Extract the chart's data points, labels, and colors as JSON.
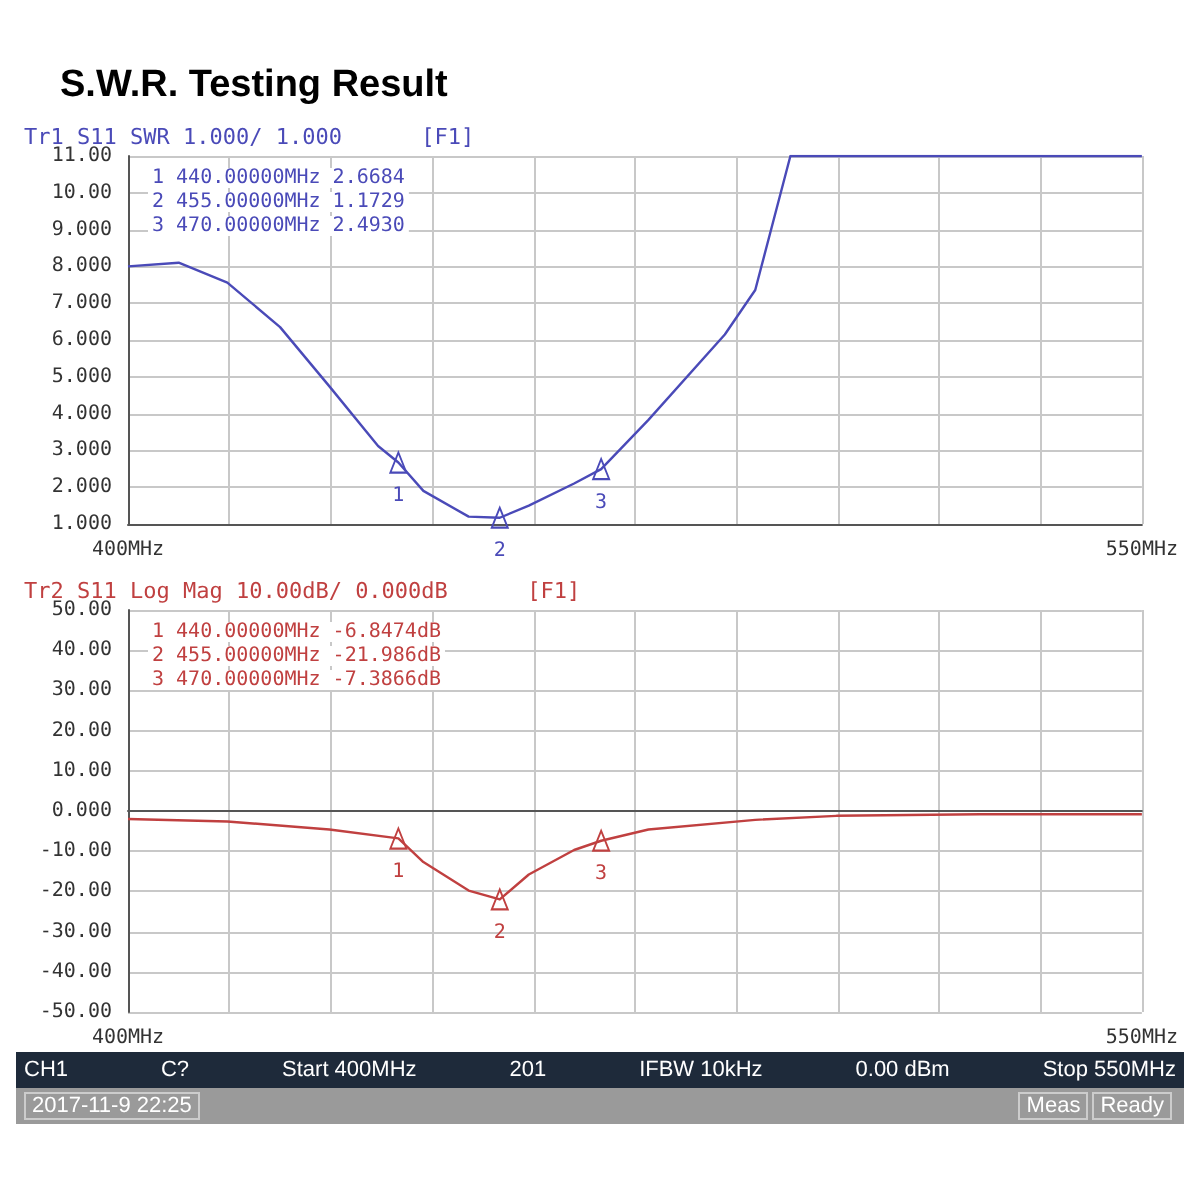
{
  "chart_data": [
    {
      "type": "line",
      "title": "S.W.R. Testing Result",
      "xlim": [
        400,
        550
      ],
      "xticks": [
        {
          "value": 400,
          "label": "400MHz"
        },
        {
          "value": 415,
          "label": null
        },
        {
          "value": 430,
          "label": null
        },
        {
          "value": 445,
          "label": null
        },
        {
          "value": 460,
          "label": null
        },
        {
          "value": 475,
          "label": null
        },
        {
          "value": 490,
          "label": null
        },
        {
          "value": 505,
          "label": null
        },
        {
          "value": 520,
          "label": null
        },
        {
          "value": 535,
          "label": null
        },
        {
          "value": 550,
          "label": "550MHz"
        }
      ],
      "ylim": [
        1,
        11
      ],
      "yticks": [
        {
          "value": 1,
          "label": "1.000"
        },
        {
          "value": 2,
          "label": "2.000"
        },
        {
          "value": 3,
          "label": "3.000"
        },
        {
          "value": 4,
          "label": "4.000"
        },
        {
          "value": 5,
          "label": "5.000"
        },
        {
          "value": 6,
          "label": "6.000"
        },
        {
          "value": 7,
          "label": "7.000"
        },
        {
          "value": 8,
          "label": "8.000"
        },
        {
          "value": 9,
          "label": "9.000"
        },
        {
          "value": 10,
          "label": "10.00"
        },
        {
          "value": 11,
          "label": "11.00"
        }
      ],
      "grid": true,
      "marker": "none",
      "series": [
        {
          "color": "#4a4ab8",
          "x": [
            400,
            407.5,
            414.7,
            422.5,
            429.8,
            437,
            440,
            443.7,
            450.4,
            455,
            459.3,
            466,
            470,
            477,
            488.3,
            492.8,
            498,
            550
          ],
          "values": [
            8.0,
            8.1,
            7.56,
            6.35,
            4.74,
            3.12,
            2.67,
            1.9,
            1.2,
            1.17,
            1.5,
            2.1,
            2.49,
            3.83,
            6.15,
            7.36,
            11,
            11
          ]
        }
      ],
      "annotations": [
        "Tr1 S11 SWR 1.000/ 1.000",
        "[F1]",
        "1 440.00000MHz 2.6684",
        "2 455.00000MHz 1.1729",
        "3 470.00000MHz 2.4930",
        {
          "text": "1",
          "x": 440,
          "y": 2.6684
        },
        {
          "text": "2",
          "x": 455,
          "y": 1.1729
        },
        {
          "text": "3",
          "x": 470,
          "y": 2.493
        }
      ]
    },
    {
      "type": "line",
      "xlim": [
        400,
        550
      ],
      "xticks": [
        {
          "value": 400,
          "label": "400MHz"
        },
        {
          "value": 415,
          "label": null
        },
        {
          "value": 430,
          "label": null
        },
        {
          "value": 445,
          "label": null
        },
        {
          "value": 460,
          "label": null
        },
        {
          "value": 475,
          "label": null
        },
        {
          "value": 490,
          "label": null
        },
        {
          "value": 505,
          "label": null
        },
        {
          "value": 520,
          "label": null
        },
        {
          "value": 535,
          "label": null
        },
        {
          "value": 550,
          "label": "550MHz"
        }
      ],
      "ylim": [
        -50,
        50
      ],
      "yticks": [
        {
          "value": -50,
          "label": "-50.00"
        },
        {
          "value": -40,
          "label": "-40.00"
        },
        {
          "value": -30,
          "label": "-30.00"
        },
        {
          "value": -20,
          "label": "-20.00"
        },
        {
          "value": -10,
          "label": "-10.00"
        },
        {
          "value": 0,
          "label": "0.000"
        },
        {
          "value": 10,
          "label": "10.00"
        },
        {
          "value": 20,
          "label": "20.00"
        },
        {
          "value": 30,
          "label": "30.00"
        },
        {
          "value": 40,
          "label": "40.00"
        },
        {
          "value": 50,
          "label": "50.00"
        }
      ],
      "grid": true,
      "marker": "none",
      "series": [
        {
          "color": "#c04040",
          "x": [
            400,
            414.7,
            429.8,
            440,
            443.7,
            450.4,
            455,
            459.3,
            466,
            470,
            477,
            492.8,
            504.8,
            526,
            550
          ],
          "values": [
            -2,
            -2.6,
            -4.6,
            -6.8,
            -12.7,
            -19.8,
            -22,
            -15.8,
            -9.7,
            -7.4,
            -4.6,
            -2.2,
            -1.2,
            -0.8,
            -0.8
          ]
        }
      ],
      "annotations": [
        "Tr2 S11 Log Mag 10.00dB/ 0.000dB",
        "[F1]",
        "1 440.00000MHz -6.8474dB",
        "2 455.00000MHz -21.986dB",
        "3 470.00000MHz -7.3866dB",
        "CH1",
        "C?",
        "Start 400MHz",
        "201",
        "IFBW 10kHz",
        "0.00 dBm",
        "Stop 550MHz",
        "2017-11-9 22:25",
        "Meas",
        "Ready",
        {
          "text": "1",
          "x": 440,
          "y": -6.8474
        },
        {
          "text": "2",
          "x": 455,
          "y": -21.986
        },
        {
          "text": "3",
          "x": 470,
          "y": -7.3866
        }
      ]
    }
  ]
}
